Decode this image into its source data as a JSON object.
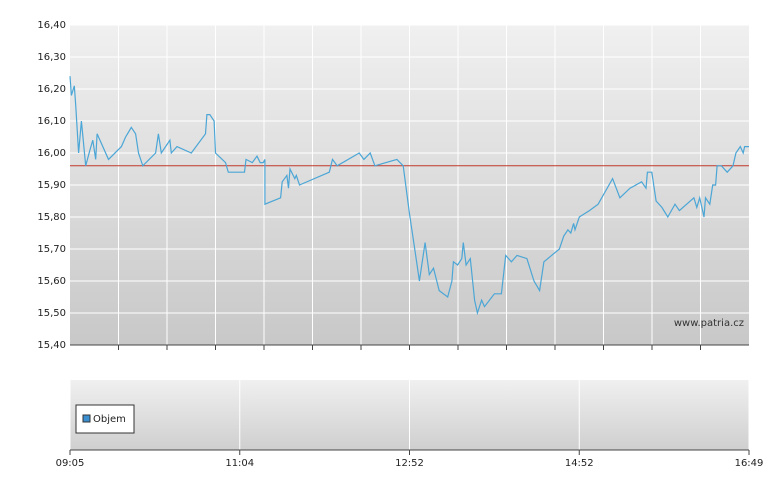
{
  "chart_data": {
    "type": "line",
    "x": [
      "09:05",
      "09:06",
      "09:08",
      "09:09",
      "09:11",
      "09:13",
      "09:16",
      "09:19",
      "09:21",
      "09:23",
      "09:24",
      "09:32",
      "09:41",
      "09:44",
      "09:48",
      "09:51",
      "09:53",
      "09:56",
      "10:05",
      "10:07",
      "10:09",
      "10:15",
      "10:16",
      "10:20",
      "10:30",
      "10:40",
      "10:41",
      "10:43",
      "10:46",
      "10:47",
      "10:54",
      "10:56",
      "11:07",
      "11:08",
      "11:12",
      "11:15",
      "11:17",
      "11:19",
      "11:20",
      "11:20",
      "11:30",
      "11:31",
      "11:34",
      "11:35",
      "11:36",
      "11:39",
      "11:40",
      "11:42",
      "12:01",
      "12:03",
      "12:06",
      "12:20",
      "12:23",
      "12:27",
      "12:30",
      "12:44",
      "12:48",
      "12:52",
      "12:56",
      "12:59",
      "13:03",
      "13:06",
      "13:09",
      "13:13",
      "13:19",
      "13:22",
      "13:23",
      "13:26",
      "13:29",
      "13:30",
      "13:32",
      "13:35",
      "13:38",
      "13:40",
      "13:43",
      "13:45",
      "13:52",
      "13:57",
      "14:00",
      "14:04",
      "14:08",
      "14:15",
      "14:20",
      "14:24",
      "14:27",
      "14:38",
      "14:41",
      "14:44",
      "14:46",
      "14:48",
      "14:49",
      "14:52",
      "14:59",
      "15:05",
      "15:15",
      "15:20",
      "15:27",
      "15:35",
      "15:38",
      "15:39",
      "15:42",
      "15:45",
      "15:49",
      "15:53",
      "15:58",
      "16:01",
      "16:11",
      "16:13",
      "16:15",
      "16:18",
      "16:19",
      "16:22",
      "16:24",
      "16:26",
      "16:27",
      "16:30",
      "16:34",
      "16:38",
      "16:40",
      "16:43",
      "16:45",
      "16:46",
      "16:49"
    ],
    "values": [
      16.24,
      16.18,
      16.21,
      16.15,
      16.0,
      16.1,
      15.96,
      16.01,
      16.04,
      15.98,
      16.06,
      15.98,
      16.02,
      16.05,
      16.08,
      16.06,
      16.0,
      15.96,
      16.0,
      16.06,
      16.0,
      16.04,
      16.0,
      16.02,
      16.0,
      16.06,
      16.12,
      16.12,
      16.1,
      16.0,
      15.97,
      15.94,
      15.94,
      15.98,
      15.97,
      15.99,
      15.97,
      15.97,
      15.98,
      15.84,
      15.86,
      15.91,
      15.93,
      15.89,
      15.95,
      15.92,
      15.93,
      15.9,
      15.94,
      15.98,
      15.96,
      16.0,
      15.98,
      16.0,
      15.96,
      15.98,
      15.96,
      15.81,
      15.69,
      15.6,
      15.72,
      15.62,
      15.64,
      15.57,
      15.55,
      15.6,
      15.66,
      15.65,
      15.67,
      15.72,
      15.65,
      15.67,
      15.54,
      15.5,
      15.54,
      15.52,
      15.56,
      15.56,
      15.68,
      15.66,
      15.68,
      15.67,
      15.6,
      15.57,
      15.66,
      15.7,
      15.74,
      15.76,
      15.75,
      15.78,
      15.76,
      15.8,
      15.82,
      15.84,
      15.92,
      15.86,
      15.89,
      15.91,
      15.89,
      15.94,
      15.94,
      15.85,
      15.83,
      15.8,
      15.84,
      15.82,
      15.86,
      15.83,
      15.86,
      15.8,
      15.86,
      15.84,
      15.9,
      15.9,
      15.96,
      15.96,
      15.94,
      15.96,
      16.0,
      16.02,
      16.0,
      16.02,
      16.02
    ],
    "color": "#4ba6d6",
    "reference_line": {
      "value": 15.96,
      "color": "#c0392b"
    },
    "xlim": [
      "09:05",
      "16:49"
    ],
    "xticks": [
      "09:05",
      "11:04",
      "12:52",
      "14:52",
      "16:49"
    ],
    "ylim": [
      15.4,
      16.4
    ],
    "yticks": [
      {
        "value": 15.4,
        "label": "15,40"
      },
      {
        "value": 15.5,
        "label": "15,50"
      },
      {
        "value": 15.6,
        "label": "15,60"
      },
      {
        "value": 15.7,
        "label": "15,70"
      },
      {
        "value": 15.8,
        "label": "15,80"
      },
      {
        "value": 15.9,
        "label": "15,90"
      },
      {
        "value": 16.0,
        "label": "16,00"
      },
      {
        "value": 16.1,
        "label": "16,10"
      },
      {
        "value": 16.2,
        "label": "16,20"
      },
      {
        "value": 16.3,
        "label": "16,30"
      },
      {
        "value": 16.4,
        "label": "16,40"
      }
    ],
    "grid": true,
    "watermark": "www.patria.cz",
    "volume_legend": {
      "name": "Objem",
      "color": "#3a8fd0"
    }
  }
}
